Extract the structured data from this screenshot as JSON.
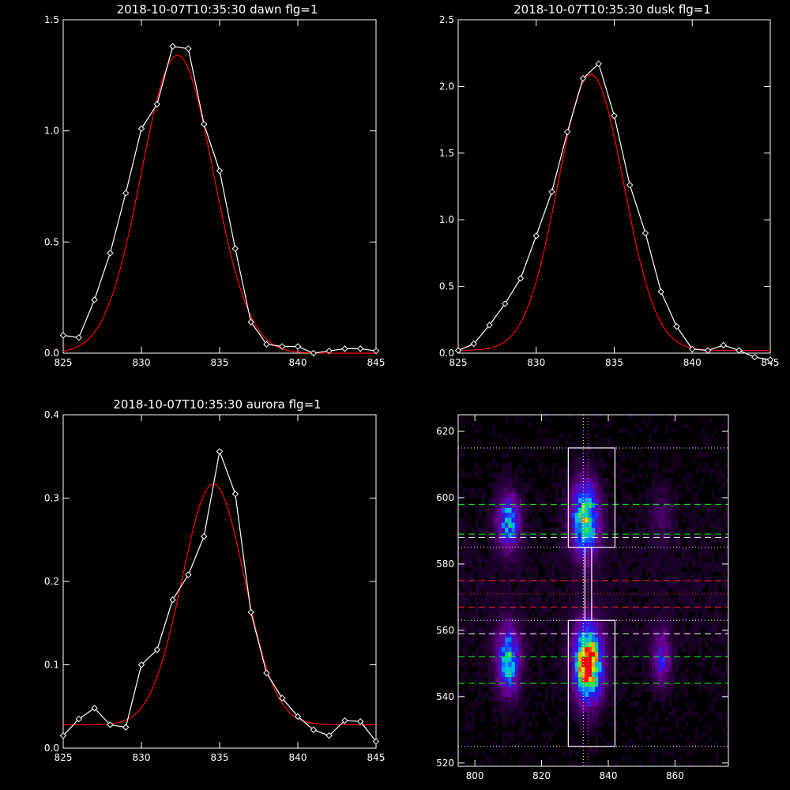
{
  "chart_data": [
    {
      "type": "line",
      "title": "2018-10-07T10:35:30 dawn flg=1",
      "xlim": [
        825,
        845
      ],
      "ylim": [
        0,
        1.5
      ],
      "xticks": [
        "825",
        "830",
        "835",
        "840",
        "845"
      ],
      "yticks": [
        "0.0",
        "0.5",
        "1.0",
        "1.5"
      ],
      "colors": {
        "data": "#ffffff",
        "fit": "#ff0000"
      },
      "series": [
        {
          "x": [
            825,
            826,
            827,
            828,
            829,
            830,
            831,
            832,
            833,
            834,
            835,
            836,
            837,
            838,
            839,
            840,
            841,
            842,
            843,
            844,
            845
          ],
          "y": [
            0.08,
            0.07,
            0.24,
            0.45,
            0.72,
            1.01,
            1.12,
            1.38,
            1.37,
            1.03,
            0.82,
            0.47,
            0.14,
            0.04,
            0.03,
            0.03,
            0.0,
            0.01,
            0.02,
            0.02,
            0.01
          ]
        }
      ],
      "fit": {
        "amplitude": 1.34,
        "center": 832.3,
        "sigma": 2.3,
        "offset": 0.0
      }
    },
    {
      "type": "line",
      "title": "2018-10-07T10:35:30 dusk flg=1",
      "xlim": [
        825,
        845
      ],
      "ylim": [
        0,
        2.5
      ],
      "xticks": [
        "825",
        "830",
        "835",
        "840",
        "845"
      ],
      "yticks": [
        "0.0",
        "0.5",
        "1.0",
        "1.5",
        "2.0",
        "2.5"
      ],
      "colors": {
        "data": "#ffffff",
        "fit": "#ff0000"
      },
      "series": [
        {
          "x": [
            825,
            826,
            827,
            828,
            829,
            830,
            831,
            832,
            833,
            834,
            835,
            836,
            837,
            838,
            839,
            840,
            841,
            842,
            843,
            844,
            845
          ],
          "y": [
            0.02,
            0.07,
            0.21,
            0.37,
            0.56,
            0.88,
            1.21,
            1.66,
            2.06,
            2.17,
            1.78,
            1.26,
            0.9,
            0.46,
            0.2,
            0.03,
            0.02,
            0.06,
            0.02,
            -0.03,
            -0.05
          ]
        }
      ],
      "fit": {
        "amplitude": 2.07,
        "center": 833.5,
        "sigma": 2.1,
        "offset": 0.02
      }
    },
    {
      "type": "line",
      "title": "2018-10-07T10:35:30 aurora flg=1",
      "xlim": [
        825,
        845
      ],
      "ylim": [
        0,
        0.4
      ],
      "xticks": [
        "825",
        "830",
        "835",
        "840",
        "845"
      ],
      "yticks": [
        "0.0",
        "0.1",
        "0.2",
        "0.3",
        "0.4"
      ],
      "colors": {
        "data": "#ffffff",
        "fit": "#ff0000"
      },
      "series": [
        {
          "x": [
            825,
            826,
            827,
            828,
            829,
            830,
            831,
            832,
            833,
            834,
            835,
            836,
            837,
            838,
            839,
            840,
            841,
            842,
            843,
            844,
            845
          ],
          "y": [
            0.015,
            0.035,
            0.048,
            0.028,
            0.025,
            0.1,
            0.118,
            0.178,
            0.208,
            0.254,
            0.356,
            0.305,
            0.163,
            0.09,
            0.06,
            0.038,
            0.022,
            0.015,
            0.033,
            0.032,
            0.008
          ]
        }
      ],
      "fit": {
        "amplitude": 0.289,
        "center": 834.6,
        "sigma": 2.0,
        "offset": 0.028
      }
    },
    {
      "type": "heatmap",
      "xlim": [
        795,
        876
      ],
      "ylim": [
        519,
        625
      ],
      "xticks": [
        "800",
        "820",
        "840",
        "860"
      ],
      "yticks": [
        "520",
        "540",
        "560",
        "580",
        "600",
        "620"
      ],
      "blobs": [
        {
          "x": 810,
          "y": 593,
          "peak": 0.55,
          "sx": 2.5,
          "sy": 6
        },
        {
          "x": 833,
          "y": 594,
          "peak": 0.7,
          "sx": 3,
          "sy": 8
        },
        {
          "x": 810,
          "y": 551,
          "peak": 0.6,
          "sx": 2.5,
          "sy": 7
        },
        {
          "x": 834,
          "y": 550,
          "peak": 1.0,
          "sx": 3,
          "sy": 8
        },
        {
          "x": 856,
          "y": 552,
          "peak": 0.35,
          "sx": 2,
          "sy": 6
        },
        {
          "x": 856,
          "y": 594,
          "peak": 0.15,
          "sx": 2.5,
          "sy": 6
        }
      ],
      "boxes": [
        {
          "x": [
            828,
            842
          ],
          "y": [
            585,
            615
          ]
        },
        {
          "x": [
            828,
            842
          ],
          "y": [
            525,
            563
          ]
        },
        {
          "x": [
            833,
            835
          ],
          "y": [
            563,
            585
          ]
        }
      ],
      "hlines": [
        {
          "y": 615,
          "color": "#ffffff",
          "style": "dotted"
        },
        {
          "y": 585,
          "color": "#ffffff",
          "style": "dotted"
        },
        {
          "y": 563,
          "color": "#ffffff",
          "style": "dotted"
        },
        {
          "y": 525,
          "color": "#ffffff",
          "style": "dotted"
        },
        {
          "y": 598,
          "color": "#00ff00",
          "style": "dashed"
        },
        {
          "y": 589,
          "color": "#00ff00",
          "style": "dashed"
        },
        {
          "y": 588,
          "color": "#ffffff",
          "style": "dashed"
        },
        {
          "y": 575,
          "color": "#ff2020",
          "style": "dashed"
        },
        {
          "y": 571,
          "color": "#ff2020",
          "style": "dotted"
        },
        {
          "y": 567,
          "color": "#ff2020",
          "style": "dashed"
        },
        {
          "y": 559,
          "color": "#ffffff",
          "style": "dashed"
        },
        {
          "y": 552,
          "color": "#00ff00",
          "style": "dashed"
        },
        {
          "y": 544,
          "color": "#00ff00",
          "style": "dashed"
        }
      ],
      "vlines": [
        {
          "x": 832.5,
          "color": "#ffffff",
          "style": "dotted"
        },
        {
          "x": 834,
          "color": "#ff40ff",
          "style": "dotted"
        }
      ]
    }
  ]
}
